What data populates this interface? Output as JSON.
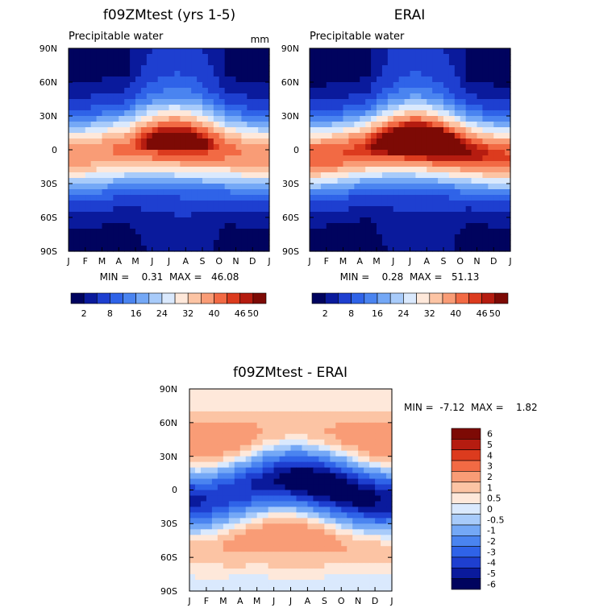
{
  "palette": {
    "abs": [
      "#00035e",
      "#0a1a9c",
      "#1e3fd0",
      "#2f63e8",
      "#4a84f0",
      "#74a8f6",
      "#a8cbfa",
      "#dae9fd",
      "#fee8da",
      "#fcc4a4",
      "#f99c76",
      "#f26a44",
      "#dc3b1e",
      "#b51c10",
      "#7d0a05"
    ],
    "diff": [
      "#00035e",
      "#0a1a9c",
      "#1e3fd0",
      "#2f63e8",
      "#4a84f0",
      "#74a8f6",
      "#a8cbfa",
      "#dae9fd",
      "#fee8da",
      "#fcc4a4",
      "#f99c76",
      "#f26a44",
      "#dc3b1e",
      "#b51c10",
      "#7d0a05"
    ]
  },
  "months": [
    "J",
    "F",
    "M",
    "A",
    "M",
    "J",
    "J",
    "A",
    "S",
    "O",
    "N",
    "D",
    "J"
  ],
  "lat_labels": [
    "90N",
    "60N",
    "30N",
    "0",
    "30S",
    "60S",
    "90S"
  ],
  "chart_data": [
    {
      "type": "heatmap",
      "title": "f09ZMtest (yrs 1-5)",
      "subtitle": "Precipitable water",
      "units": "mm",
      "stats_text": "MIN =    0.31  MAX =   46.08",
      "min": 0.31,
      "max": 46.08,
      "field": "model",
      "xlim": [
        0,
        12
      ],
      "ylim": [
        -90,
        90
      ],
      "colorbar_ticks": [
        "2",
        "8",
        "16",
        "24",
        "32",
        "40",
        "46",
        "50"
      ],
      "levels": [
        2,
        4,
        8,
        12,
        16,
        20,
        24,
        28,
        32,
        36,
        40,
        44,
        46,
        48,
        50
      ]
    },
    {
      "type": "heatmap",
      "title": "ERAI",
      "subtitle": "Precipitable water",
      "units": "",
      "stats_text": "MIN =    0.28  MAX =   51.13",
      "min": 0.28,
      "max": 51.13,
      "field": "obs",
      "xlim": [
        0,
        12
      ],
      "ylim": [
        -90,
        90
      ],
      "colorbar_ticks": [
        "2",
        "8",
        "16",
        "24",
        "32",
        "40",
        "46",
        "50"
      ],
      "levels": [
        2,
        4,
        8,
        12,
        16,
        20,
        24,
        28,
        32,
        36,
        40,
        44,
        46,
        48,
        50
      ]
    },
    {
      "type": "heatmap",
      "title": "f09ZMtest - ERAI",
      "stats_text": "MIN =  -7.12  MAX =    1.82",
      "min": -7.12,
      "max": 1.82,
      "field": "diff",
      "xlim": [
        0,
        12
      ],
      "ylim": [
        -90,
        90
      ],
      "colorbar_ticks": [
        "6",
        "5",
        "4",
        "3",
        "2",
        "1",
        "0.5",
        "0",
        "-0.5",
        "-1",
        "-2",
        "-3",
        "-4",
        "-5",
        "-6"
      ],
      "levels": [
        -6,
        -5,
        -4,
        -3,
        -2,
        -1,
        -0.5,
        0,
        0.5,
        1,
        2,
        3,
        4,
        5,
        6
      ]
    }
  ]
}
